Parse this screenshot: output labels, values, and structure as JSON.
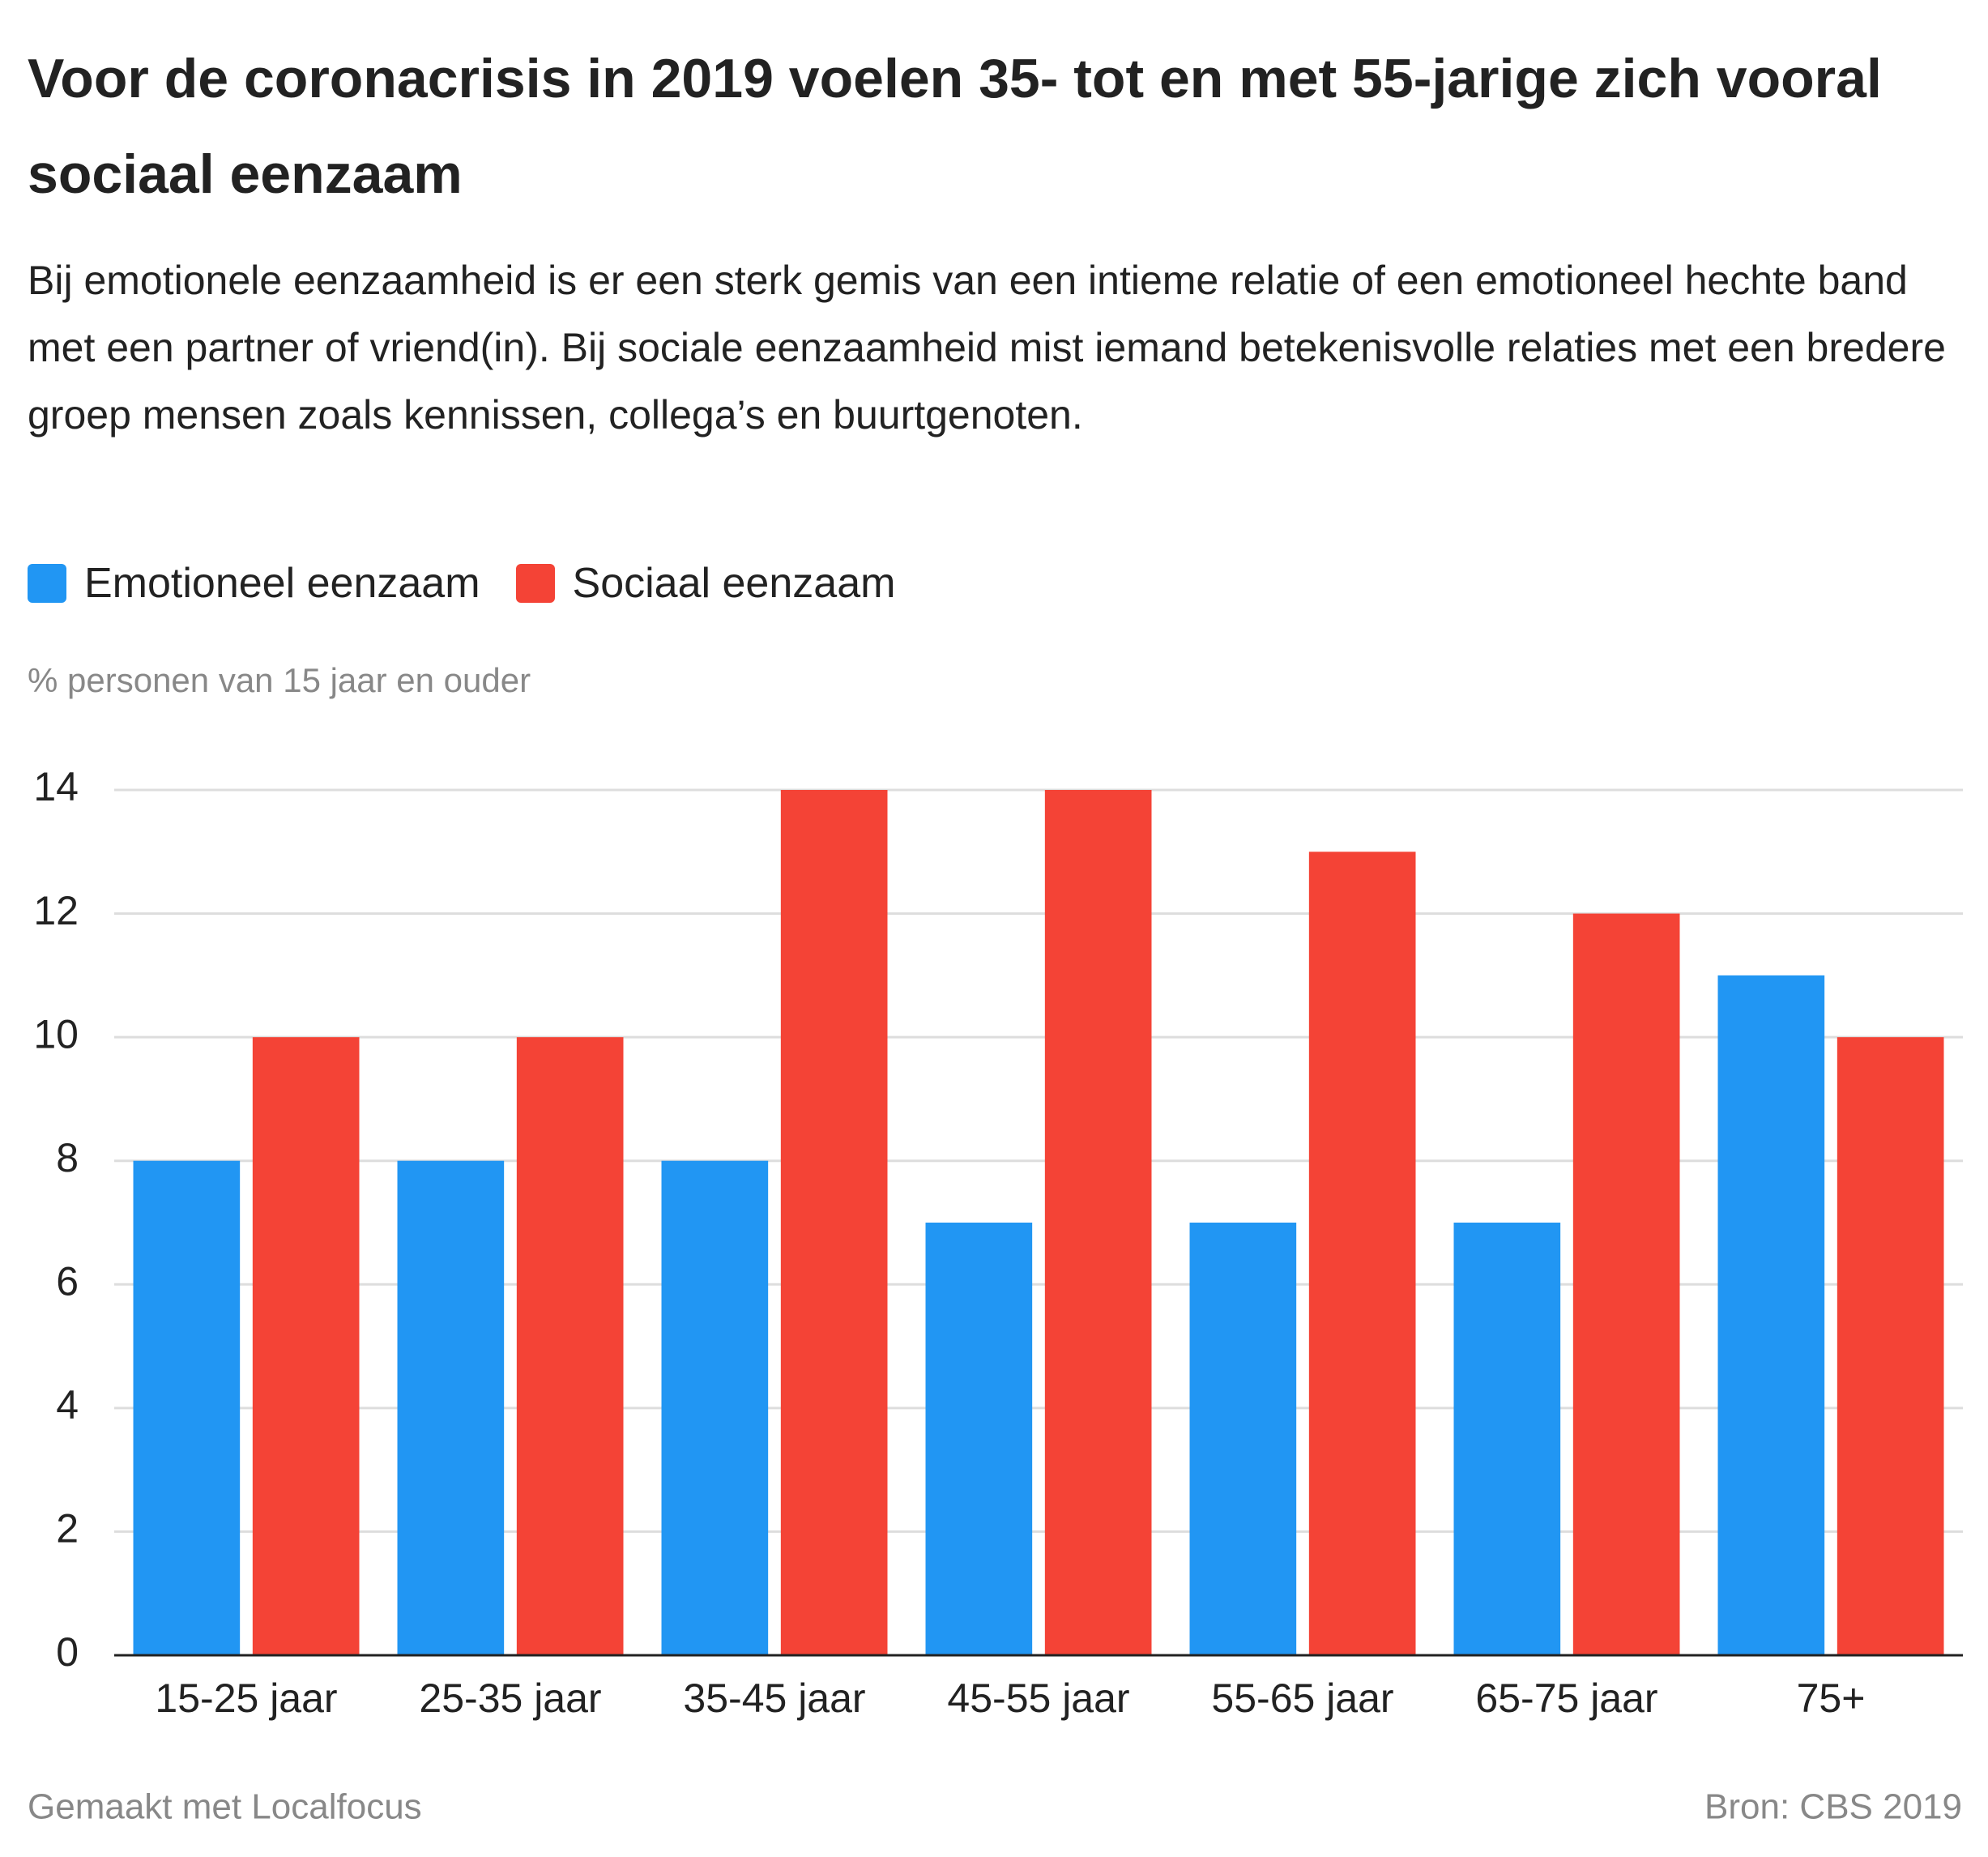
{
  "chart_data": {
    "type": "bar",
    "title": "Voor de coronacrisis in 2019 voelen 35- tot en met 55-jarige zich vooral sociaal eenzaam",
    "subtitle": "Bij emotionele eenzaamheid is er een sterk gemis van een intieme relatie of een emotioneel hechte band met een partner of vriend(in). Bij sociale eenzaamheid mist iemand betekenisvolle relaties met een bredere groep mensen zoals kennissen, collega’s en buurtgenoten.",
    "y_label": "% personen van 15 jaar en ouder",
    "categories": [
      "15-25 jaar",
      "25-35 jaar",
      "35-45 jaar",
      "45-55 jaar",
      "55-65 jaar",
      "65-75 jaar",
      "75+"
    ],
    "series": [
      {
        "name": "Emotioneel eenzaam",
        "color": "#2196f3",
        "values": [
          8,
          8,
          8,
          7,
          7,
          7,
          11
        ]
      },
      {
        "name": "Sociaal eenzaam",
        "color": "#f44336",
        "values": [
          10,
          10,
          14,
          14,
          13,
          12,
          10
        ]
      }
    ],
    "ylim": [
      0,
      14
    ],
    "yticks": [
      0,
      2,
      4,
      6,
      8,
      10,
      12,
      14
    ],
    "grid": true,
    "credit": "Gemaakt met Localfocus",
    "source": "Bron: CBS 2019"
  }
}
